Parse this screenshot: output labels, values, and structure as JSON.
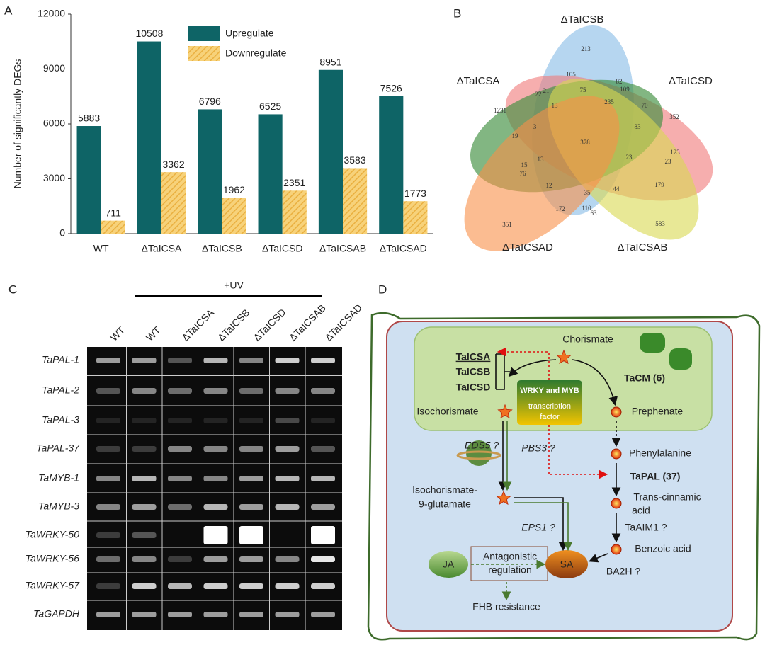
{
  "panel_labels": [
    "A",
    "B",
    "C",
    "D"
  ],
  "chart_data": {
    "type": "bar",
    "ylabel": "Number of significantly DEGs",
    "categories": [
      "WT",
      "ΔTaICSA",
      "ΔTaICSB",
      "ΔTaICSD",
      "ΔTaICSAB",
      "ΔTaICSAD"
    ],
    "series": [
      {
        "name": "Upregulate",
        "color": "#0e6466",
        "values": [
          5883,
          10508,
          6796,
          6525,
          8951,
          7526
        ]
      },
      {
        "name": "Downregulate",
        "color": "#f5c55a",
        "values": [
          711,
          3362,
          1962,
          2351,
          3583,
          1773
        ]
      }
    ],
    "ylim": [
      0,
      12000
    ],
    "yticks": [
      0,
      3000,
      6000,
      9000,
      12000
    ],
    "grid": false,
    "legend": "top"
  },
  "venn": {
    "sets": [
      "ΔTaICSB",
      "ΔTaICSA",
      "ΔTaICSD",
      "ΔTaICSAD",
      "ΔTaICSAB"
    ],
    "counts": [
      213,
      105,
      82,
      109,
      21,
      22,
      75,
      1231,
      13,
      235,
      70,
      352,
      19,
      3,
      83,
      378,
      123,
      13,
      23,
      23,
      15,
      76,
      12,
      179,
      35,
      44,
      172,
      110,
      63,
      351,
      583
    ]
  },
  "gel": {
    "treatment": "+UV",
    "lanes": [
      "WT",
      "WT",
      "ΔTaICSA",
      "ΔTaICSB",
      "ΔTaICSD",
      "ΔTaICSAB",
      "ΔTaICSAD"
    ],
    "rows": [
      "TaPAL-1",
      "TaPAL-2",
      "TaPAL-3",
      "TaPAL-37",
      "TaMYB-1",
      "TaMYB-3",
      "TaWRKY-50",
      "TaWRKY-56",
      "TaWRKY-57",
      "TaGAPDH"
    ]
  },
  "pathway": {
    "chorismate": "Chorismate",
    "icsa": "TaICSA",
    "icsb": "TaICSB",
    "icsd": "TaICSD",
    "tacm": "TaCM (6)",
    "tf": [
      "WRKY and MYB",
      "transcription",
      "factor"
    ],
    "isochorismate": "Isochorismate",
    "prephenate": "Prephenate",
    "eds5": "EDS5 ?",
    "pbs3": "PBS3 ?",
    "phenylalanine": "Phenylalanine",
    "tapal": "TaPAL (37)",
    "iso9": [
      "Isochorismate-",
      "9-glutamate"
    ],
    "cinnamic": [
      "Trans-cinnamic",
      "acid"
    ],
    "eps1": "EPS1 ?",
    "aim1": "TaAIM1 ?",
    "benzoic": "Benzoic acid",
    "ja": "JA",
    "antag": [
      "Antagonistic",
      "regulation"
    ],
    "sa": "SA",
    "ba2h": "BA2H ?",
    "fhb": "FHB resistance"
  }
}
